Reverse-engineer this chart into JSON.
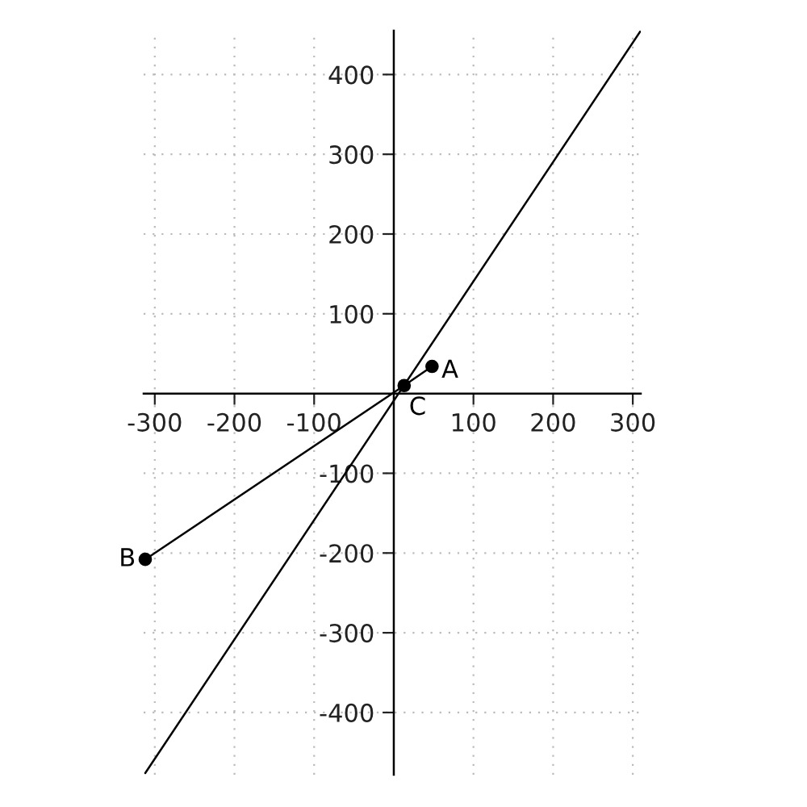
{
  "chart_data": {
    "type": "line",
    "series": [
      {
        "color": "#000000",
        "marker": "none",
        "x": [
          -312,
          310
        ],
        "values": [
          -476,
          455
        ]
      },
      {
        "color": "#000000",
        "marker": "circle",
        "x": [
          -312,
          13,
          48
        ],
        "values": [
          -208,
          10,
          34
        ]
      }
    ],
    "annotations": [
      {
        "text": "B",
        "x": -312,
        "y": -208
      },
      {
        "text": "C",
        "x": 13,
        "y": 10
      },
      {
        "text": "A",
        "x": 48,
        "y": 34
      }
    ],
    "xlim": [
      -314,
      310
    ],
    "ylim": [
      -478,
      455
    ],
    "xticks": [
      -300,
      -200,
      -100,
      100,
      200,
      300
    ],
    "yticks": [
      -400,
      -300,
      -200,
      -100,
      100,
      200,
      300,
      400
    ],
    "grid": true
  }
}
